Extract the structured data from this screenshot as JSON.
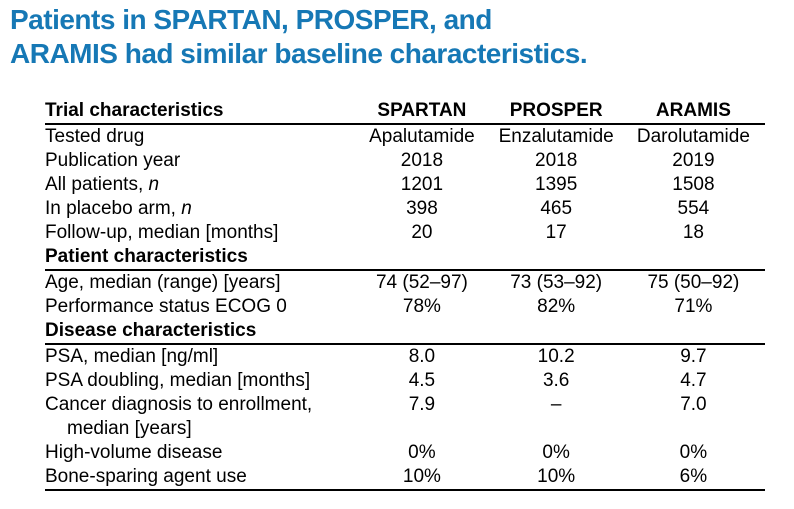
{
  "title": {
    "line1": "Patients in SPARTAN, PROSPER, and",
    "line2": "ARAMIS had similar baseline characteristics.",
    "color": "#1678b5"
  },
  "table": {
    "header": {
      "label": "Trial characteristics",
      "columns": [
        "SPARTAN",
        "PROSPER",
        "ARAMIS"
      ]
    },
    "rows": [
      {
        "type": "row",
        "label": "Tested drug",
        "values": [
          "Apalutamide",
          "Enzalutamide",
          "Darolutamide"
        ]
      },
      {
        "type": "row",
        "label": "Publication year",
        "values": [
          "2018",
          "2018",
          "2019"
        ]
      },
      {
        "type": "row",
        "label": "All patients, ",
        "label_italic": "n",
        "values": [
          "1201",
          "1395",
          "1508"
        ]
      },
      {
        "type": "row",
        "label": "In placebo arm, ",
        "label_italic": "n",
        "values": [
          "398",
          "465",
          "554"
        ]
      },
      {
        "type": "row",
        "label": "Follow-up, median [months]",
        "values": [
          "20",
          "17",
          "18"
        ]
      },
      {
        "type": "section",
        "label": "Patient characteristics"
      },
      {
        "type": "row",
        "label": "Age, median (range) [years]",
        "values": [
          "74 (52–97)",
          "73 (53–92)",
          "75 (50–92)"
        ]
      },
      {
        "type": "row",
        "label": "Performance status ECOG 0",
        "values": [
          "78%",
          "82%",
          "71%"
        ]
      },
      {
        "type": "section",
        "label": "Disease characteristics"
      },
      {
        "type": "row",
        "label": "PSA, median [ng/ml]",
        "values": [
          "8.0",
          "10.2",
          "9.7"
        ]
      },
      {
        "type": "row",
        "label": "PSA doubling, median [months]",
        "values": [
          "4.5",
          "3.6",
          "4.7"
        ]
      },
      {
        "type": "row",
        "label": "Cancer diagnosis to enrollment,",
        "label_line2": "median [years]",
        "values": [
          "7.9",
          "–",
          "7.0"
        ]
      },
      {
        "type": "row",
        "label": "High-volume disease",
        "values": [
          "0%",
          "0%",
          "0%"
        ]
      },
      {
        "type": "row",
        "label": "Bone-sparing agent use",
        "values": [
          "10%",
          "10%",
          "6%"
        ]
      }
    ]
  }
}
